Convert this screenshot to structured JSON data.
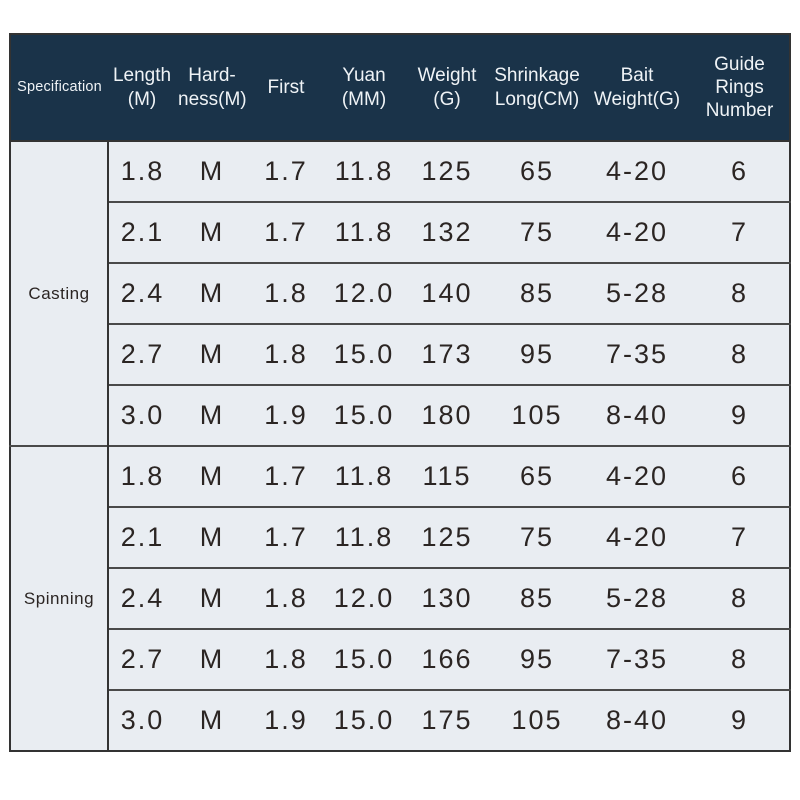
{
  "colors": {
    "header_bg": "#1a3349",
    "header_text": "#eff3f6",
    "row_bg": "#e9edf2",
    "cell_text": "#2b2523",
    "grid_line": "#4a4a4a",
    "outer_border": "#333333",
    "page_bg": "#ffffff"
  },
  "chart_data": {
    "type": "table",
    "title": "",
    "columns": [
      {
        "id": "specification",
        "label": "Specification"
      },
      {
        "id": "length",
        "label": "Length\n(M)"
      },
      {
        "id": "hardness",
        "label": "Hard-\nness(M)"
      },
      {
        "id": "first",
        "label": "First"
      },
      {
        "id": "yuan",
        "label": "Yuan\n(MM)"
      },
      {
        "id": "weight",
        "label": "Weight\n(G)"
      },
      {
        "id": "shrinkage",
        "label": "Shrinkage\nLong(CM)"
      },
      {
        "id": "bait-weight",
        "label": "Bait\nWeight(G)"
      },
      {
        "id": "guide-rings",
        "label": "Guide\nRings\nNumber"
      }
    ],
    "sections": [
      {
        "name": "Casting",
        "rows": [
          [
            "1.8",
            "M",
            "1.7",
            "11.8",
            "125",
            "65",
            "4-20",
            "6"
          ],
          [
            "2.1",
            "M",
            "1.7",
            "11.8",
            "132",
            "75",
            "4-20",
            "7"
          ],
          [
            "2.4",
            "M",
            "1.8",
            "12.0",
            "140",
            "85",
            "5-28",
            "8"
          ],
          [
            "2.7",
            "M",
            "1.8",
            "15.0",
            "173",
            "95",
            "7-35",
            "8"
          ],
          [
            "3.0",
            "M",
            "1.9",
            "15.0",
            "180",
            "105",
            "8-40",
            "9"
          ]
        ]
      },
      {
        "name": "Spinning",
        "rows": [
          [
            "1.8",
            "M",
            "1.7",
            "11.8",
            "115",
            "65",
            "4-20",
            "6"
          ],
          [
            "2.1",
            "M",
            "1.7",
            "11.8",
            "125",
            "75",
            "4-20",
            "7"
          ],
          [
            "2.4",
            "M",
            "1.8",
            "12.0",
            "130",
            "85",
            "5-28",
            "8"
          ],
          [
            "2.7",
            "M",
            "1.8",
            "15.0",
            "166",
            "95",
            "7-35",
            "8"
          ],
          [
            "3.0",
            "M",
            "1.9",
            "15.0",
            "175",
            "105",
            "8-40",
            "9"
          ]
        ]
      }
    ]
  }
}
